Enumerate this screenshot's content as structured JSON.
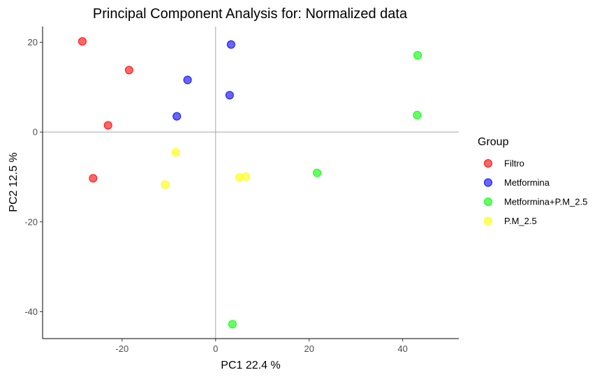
{
  "chart_data": {
    "type": "scatter",
    "title": "Principal Component Analysis for:  Normalized data",
    "xlabel": "PC1 22.4 %",
    "ylabel": "PC2 12.5 %",
    "xlim": [
      -37,
      52
    ],
    "ylim": [
      -46,
      23.5
    ],
    "x_ticks": [
      -20,
      0,
      20,
      40
    ],
    "y_ticks": [
      20,
      0,
      -20,
      -40
    ],
    "reference_lines": {
      "x": 0,
      "y": 0
    },
    "grid": false,
    "legend_title": "Group",
    "legend_position": "right",
    "series": [
      {
        "name": "Filtro",
        "color": "#ff0000",
        "points": [
          [
            -28.5,
            20.2
          ],
          [
            -18.5,
            13.8
          ],
          [
            -23.0,
            1.5
          ],
          [
            -26.2,
            -10.3
          ]
        ]
      },
      {
        "name": "Metformina",
        "color": "#0000ff",
        "points": [
          [
            3.3,
            19.5
          ],
          [
            -6.0,
            11.6
          ],
          [
            3.0,
            8.2
          ],
          [
            -8.3,
            3.5
          ]
        ]
      },
      {
        "name": "Metformina+P.M_2.5",
        "color": "#00ff00",
        "points": [
          [
            43.2,
            17.1
          ],
          [
            43.1,
            3.8
          ],
          [
            21.7,
            -9.1
          ],
          [
            3.6,
            -42.8
          ]
        ]
      },
      {
        "name": "P.M_2.5",
        "color": "#ffff00",
        "points": [
          [
            -8.5,
            -4.5
          ],
          [
            -10.8,
            -11.7
          ],
          [
            5.1,
            -10.1
          ],
          [
            6.5,
            -9.9
          ]
        ]
      }
    ]
  }
}
